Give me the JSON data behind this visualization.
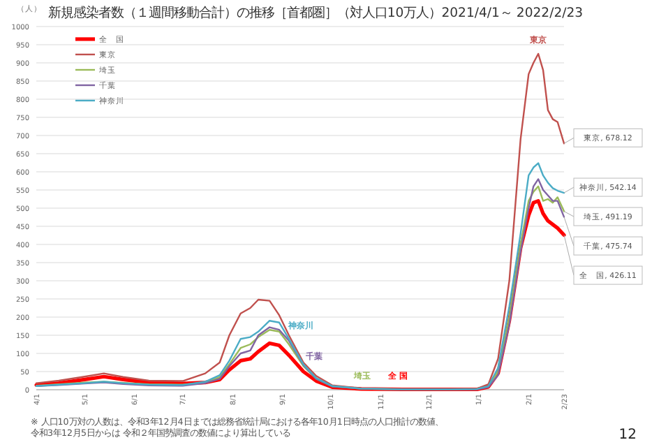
{
  "chart_data": {
    "type": "line",
    "title": "新規感染者数（１週間移動合計）の推移［首都圏］（対人口10万人）2021/4/1～ 2022/2/23",
    "ylabel": "（人）",
    "x": [
      "2021-04-01",
      "2021-04-15",
      "2021-05-01",
      "2021-05-13",
      "2021-05-25",
      "2021-06-10",
      "2021-07-01",
      "2021-07-15",
      "2021-07-24",
      "2021-07-30",
      "2021-08-06",
      "2021-08-12",
      "2021-08-17",
      "2021-08-24",
      "2021-08-30",
      "2021-09-05",
      "2021-09-14",
      "2021-09-22",
      "2021-10-02",
      "2021-10-20",
      "2021-11-15",
      "2021-12-15",
      "2021-12-31",
      "2022-01-07",
      "2022-01-13",
      "2022-01-20",
      "2022-01-27",
      "2022-02-01",
      "2022-02-04",
      "2022-02-07",
      "2022-02-10",
      "2022-02-13",
      "2022-02-16",
      "2022-02-19",
      "2022-02-23"
    ],
    "series": [
      {
        "name": "全　国",
        "color": "#ff0000",
        "values": [
          13,
          18,
          28,
          36,
          28,
          20,
          17,
          20,
          28,
          55,
          80,
          85,
          105,
          128,
          122,
          95,
          50,
          24,
          7,
          2,
          1,
          1,
          1,
          8,
          45,
          190,
          390,
          480,
          515,
          520,
          485,
          465,
          455,
          445,
          426.11
        ],
        "value_labels": [
          null,
          null,
          null,
          null,
          null,
          null,
          null,
          null,
          null,
          null,
          null,
          null,
          null,
          null,
          null,
          null,
          null,
          null,
          null,
          null,
          null,
          null,
          null,
          null,
          null,
          null,
          null,
          null,
          null,
          null,
          null,
          null,
          null,
          null,
          "全　国, 426.11"
        ]
      },
      {
        "name": "東京",
        "color": "#c0504d",
        "values": [
          18,
          25,
          36,
          45,
          35,
          25,
          24,
          45,
          75,
          150,
          210,
          225,
          248,
          245,
          205,
          150,
          75,
          38,
          12,
          4,
          2,
          2,
          3,
          15,
          85,
          300,
          690,
          869,
          900,
          925,
          880,
          770,
          745,
          737,
          678.12
        ],
        "value_labels": [
          null,
          null,
          null,
          null,
          null,
          null,
          null,
          null,
          null,
          null,
          null,
          null,
          null,
          null,
          null,
          null,
          null,
          null,
          null,
          null,
          null,
          null,
          null,
          null,
          null,
          null,
          null,
          null,
          null,
          null,
          null,
          null,
          null,
          null,
          "東京, 678.12"
        ]
      },
      {
        "name": "埼玉",
        "color": "#9bbb59",
        "values": [
          11,
          15,
          20,
          22,
          19,
          15,
          14,
          20,
          35,
          70,
          115,
          125,
          145,
          165,
          160,
          125,
          65,
          30,
          9,
          3,
          1,
          1,
          2,
          8,
          50,
          200,
          400,
          520,
          545,
          560,
          520,
          525,
          515,
          530,
          491.19
        ],
        "value_labels": [
          null,
          null,
          null,
          null,
          null,
          null,
          null,
          null,
          null,
          null,
          null,
          null,
          null,
          null,
          null,
          null,
          null,
          null,
          null,
          null,
          null,
          null,
          null,
          null,
          null,
          null,
          null,
          null,
          null,
          null,
          null,
          null,
          null,
          null,
          "埼玉, 491.19"
        ]
      },
      {
        "name": "千葉",
        "color": "#8064a2",
        "values": [
          10,
          13,
          17,
          20,
          16,
          12,
          11,
          18,
          30,
          65,
          100,
          108,
          150,
          172,
          165,
          135,
          68,
          30,
          9,
          3,
          1,
          1,
          1,
          7,
          40,
          180,
          380,
          500,
          560,
          580,
          550,
          535,
          520,
          520,
          475.74
        ],
        "value_labels": [
          null,
          null,
          null,
          null,
          null,
          null,
          null,
          null,
          null,
          null,
          null,
          null,
          null,
          null,
          null,
          null,
          null,
          null,
          null,
          null,
          null,
          null,
          null,
          null,
          null,
          null,
          null,
          null,
          null,
          null,
          null,
          null,
          null,
          null,
          "千葉, 475.74"
        ]
      },
      {
        "name": "神奈川",
        "color": "#4bacc6",
        "values": [
          10,
          14,
          18,
          22,
          18,
          14,
          13,
          22,
          40,
          80,
          140,
          145,
          160,
          190,
          185,
          140,
          70,
          32,
          10,
          3,
          1,
          1,
          2,
          10,
          60,
          230,
          430,
          590,
          612,
          624,
          590,
          570,
          555,
          548,
          542.14
        ],
        "value_labels": [
          null,
          null,
          null,
          null,
          null,
          null,
          null,
          null,
          null,
          null,
          null,
          null,
          null,
          null,
          null,
          null,
          null,
          null,
          null,
          null,
          null,
          null,
          null,
          null,
          null,
          null,
          null,
          null,
          null,
          null,
          null,
          null,
          null,
          null,
          "神奈川, 542.14"
        ]
      }
    ],
    "xlim": [
      "2021-04-01",
      "2022-02-23"
    ],
    "ylim": [
      0,
      1000
    ],
    "yticks": [
      0,
      50,
      100,
      150,
      200,
      250,
      300,
      350,
      400,
      450,
      500,
      550,
      600,
      650,
      700,
      750,
      800,
      850,
      900,
      950,
      1000
    ],
    "xticks": [
      {
        "value": "2021-04-01",
        "label": "4/1"
      },
      {
        "value": "2021-05-01",
        "label": "5/1"
      },
      {
        "value": "2021-06-01",
        "label": "6/1"
      },
      {
        "value": "2021-07-01",
        "label": "7/1"
      },
      {
        "value": "2021-08-01",
        "label": "8/1"
      },
      {
        "value": "2021-09-01",
        "label": "9/1"
      },
      {
        "value": "2021-10-01",
        "label": "10/1"
      },
      {
        "value": "2021-11-01",
        "label": "11/1"
      },
      {
        "value": "2021-12-01",
        "label": "12/1"
      },
      {
        "value": "2022-01-01",
        "label": "1/1"
      },
      {
        "value": "2022-02-01",
        "label": "2/1"
      },
      {
        "value": "2022-02-23",
        "label": "2/23"
      }
    ],
    "grid": "y",
    "legend": "top left",
    "marker": "none",
    "line_style": "solid",
    "annotations": [
      {
        "text": "全 国",
        "x": "2021-11-03",
        "y": 24
      },
      {
        "text": "東京",
        "x": "2022-02-07",
        "y": 925
      },
      {
        "text": "埼玉",
        "x": "2021-10-13",
        "y": 24
      },
      {
        "text": "千葉",
        "x": "2021-09-13",
        "y": 77
      },
      {
        "text": "神奈川",
        "x": "2021-09-02",
        "y": 162
      },
      "※ 人口10万対の人数は、令和3年12月4日までは総務省統計局における各年10月1日時点の人口推計の数値、",
      "令和3年12月5日からは 令和２年国勢調査の数値により算出している",
      "12"
    ]
  }
}
